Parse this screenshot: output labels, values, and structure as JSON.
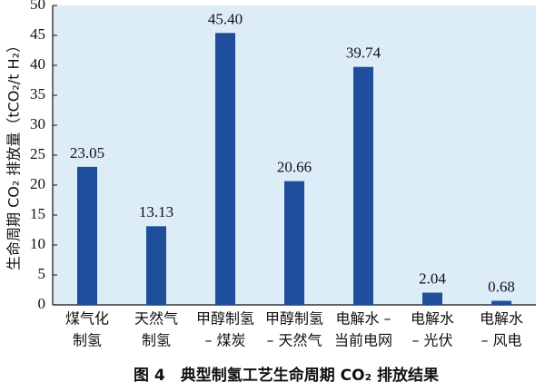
{
  "chart_data": {
    "type": "bar",
    "ylabel": "生命周期 CO₂ 排放量（tCO₂/t H₂）",
    "caption": "图 4　典型制氢工艺生命周期 CO₂ 排放结果",
    "categories": [
      [
        "煤气化",
        "制氢"
      ],
      [
        "天然气",
        "制氢"
      ],
      [
        "甲醇制氢",
        "– 煤炭"
      ],
      [
        "甲醇制氢",
        "– 天然气"
      ],
      [
        "电解水 –",
        "当前电网"
      ],
      [
        "电解水",
        "– 光伏"
      ],
      [
        "电解水",
        "– 风电"
      ]
    ],
    "values": [
      23.05,
      13.13,
      45.4,
      20.66,
      39.74,
      2.04,
      0.68
    ],
    "value_labels": [
      "23.05",
      "13.13",
      "45.40",
      "20.66",
      "39.74",
      "2.04",
      "0.68"
    ],
    "color": "#1f4e9c",
    "background": "#dcedf8",
    "ylim": [
      0,
      50
    ],
    "yticks": [
      0,
      5,
      10,
      15,
      20,
      25,
      30,
      35,
      40,
      45,
      50
    ]
  }
}
